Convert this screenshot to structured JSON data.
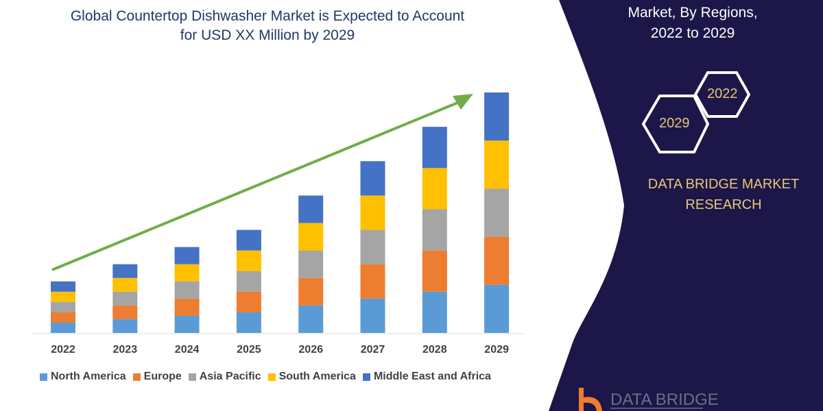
{
  "title_lines": [
    "Global Countertop Dishwasher Market is Expected to Account",
    "for USD XX Million by 2029"
  ],
  "panel": {
    "title_lines": [
      "Market,  By Regions,",
      "2022 to 2029"
    ],
    "hex_labels": [
      "2022",
      "2029"
    ],
    "brand_lines": [
      "DATA BRIDGE MARKET",
      "RESEARCH"
    ],
    "logo_text": "DATA BRIDGE",
    "background_color": "#1c1748",
    "accent_color": "#e8c77a"
  },
  "chart_data": {
    "type": "bar",
    "stacked": true,
    "categories": [
      "2022",
      "2023",
      "2024",
      "2025",
      "2026",
      "2027",
      "2028",
      "2029"
    ],
    "series": [
      {
        "name": "North America",
        "color": "#5b9bd5",
        "values": [
          15,
          20,
          25,
          30,
          40,
          50,
          60,
          70
        ]
      },
      {
        "name": "Europe",
        "color": "#ed7d31",
        "values": [
          15,
          20,
          25,
          30,
          40,
          50,
          60,
          70
        ]
      },
      {
        "name": "Asia Pacific",
        "color": "#a5a5a5",
        "values": [
          15,
          20,
          25,
          30,
          40,
          50,
          60,
          70
        ]
      },
      {
        "name": "South America",
        "color": "#ffc000",
        "values": [
          15,
          20,
          25,
          30,
          40,
          50,
          60,
          70
        ]
      },
      {
        "name": "Middle East and Africa",
        "color": "#4472c4",
        "values": [
          15,
          20,
          25,
          30,
          40,
          50,
          60,
          70
        ]
      }
    ],
    "ylim": [
      0,
      350
    ],
    "y_axis_shown": false,
    "grid": false,
    "legend": "bottom",
    "trend_arrow_color": "#70ad47"
  }
}
